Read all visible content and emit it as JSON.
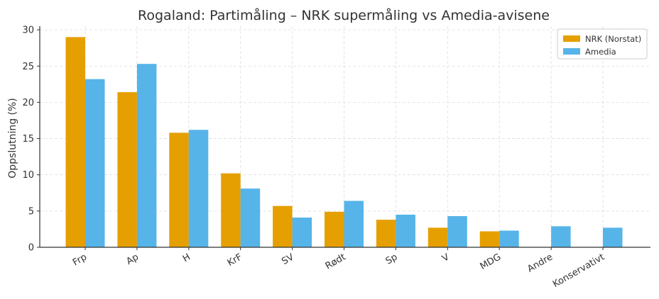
{
  "chart_data": {
    "type": "bar",
    "title": "Rogaland: Partimåling – NRK supermåling vs Amedia-avisene",
    "xlabel": "",
    "ylabel": "Oppslutning (%)",
    "ylim": [
      0,
      30.5
    ],
    "yticks": [
      "0",
      "5",
      "10",
      "15",
      "20",
      "25",
      "30"
    ],
    "grid": true,
    "legend_position": "top-right",
    "categories": [
      "Frp",
      "Ap",
      "H",
      "KrF",
      "SV",
      "Rødt",
      "Sp",
      "V",
      "MDG",
      "Andre",
      "Konservativt"
    ],
    "series": [
      {
        "name": "NRK (Norstat)",
        "color": "#E69F00",
        "values": [
          29.0,
          21.4,
          15.8,
          10.2,
          5.7,
          4.9,
          3.8,
          2.7,
          2.2,
          null,
          null
        ]
      },
      {
        "name": "Amedia",
        "color": "#56B4E9",
        "values": [
          23.2,
          25.3,
          16.2,
          8.1,
          4.1,
          6.4,
          4.5,
          4.3,
          2.3,
          2.9,
          2.7
        ]
      }
    ]
  }
}
